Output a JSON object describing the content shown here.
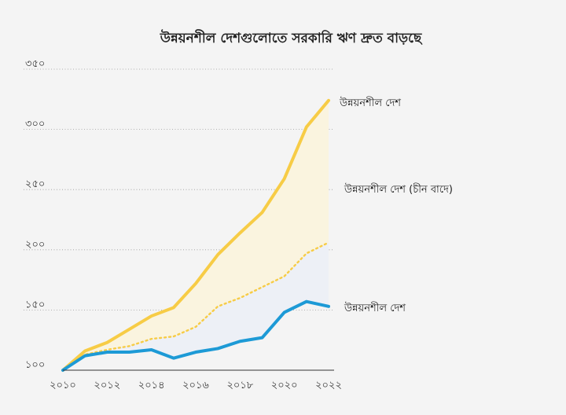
{
  "chart_data": {
    "type": "line",
    "title": "উন্নয়নশীল দেশগুলোতে সরকারি ঋণ দ্রুত বাড়ছে",
    "xlabel": "",
    "ylabel": "",
    "x": [
      2010,
      2011,
      2012,
      2013,
      2014,
      2015,
      2016,
      2017,
      2018,
      2019,
      2020,
      2021,
      2022
    ],
    "x_tick_values": [
      2010,
      2012,
      2014,
      2016,
      2018,
      2020,
      2022
    ],
    "x_tick_labels": [
      "২০১০",
      "২০১২",
      "২০১৪",
      "২০১৬",
      "২০১৮",
      "২০২০",
      "২০২২"
    ],
    "ylim": [
      100,
      350
    ],
    "y_tick_values": [
      100,
      150,
      200,
      250,
      300,
      350
    ],
    "y_tick_labels": [
      "১০০",
      "১৫০",
      "২০০",
      "২৫০",
      "৩০০",
      "৩৫০"
    ],
    "grid": true,
    "series": [
      {
        "name": "উন্নয়নশীল দেশ",
        "color": "#f7cc46",
        "style": "solid",
        "values": [
          100,
          116,
          123,
          134,
          145,
          152,
          172,
          196,
          214,
          231,
          259,
          302,
          324
        ]
      },
      {
        "name": "উন্নয়নশীল দেশ (চীন বাদে)",
        "color": "#f7cc46",
        "style": "dotted",
        "values": [
          100,
          113,
          117,
          120,
          126,
          128,
          136,
          153,
          160,
          169,
          178,
          197,
          206
        ]
      },
      {
        "name": "উন্নয়নশীল দেশ",
        "color": "#1d9ad6",
        "style": "solid",
        "values": [
          100,
          112,
          115,
          115,
          117,
          110,
          115,
          118,
          124,
          127,
          148,
          157,
          153
        ]
      }
    ],
    "fill_colors": {
      "upper_band": "#faf4df",
      "lower_band": "#edf0f6"
    }
  }
}
